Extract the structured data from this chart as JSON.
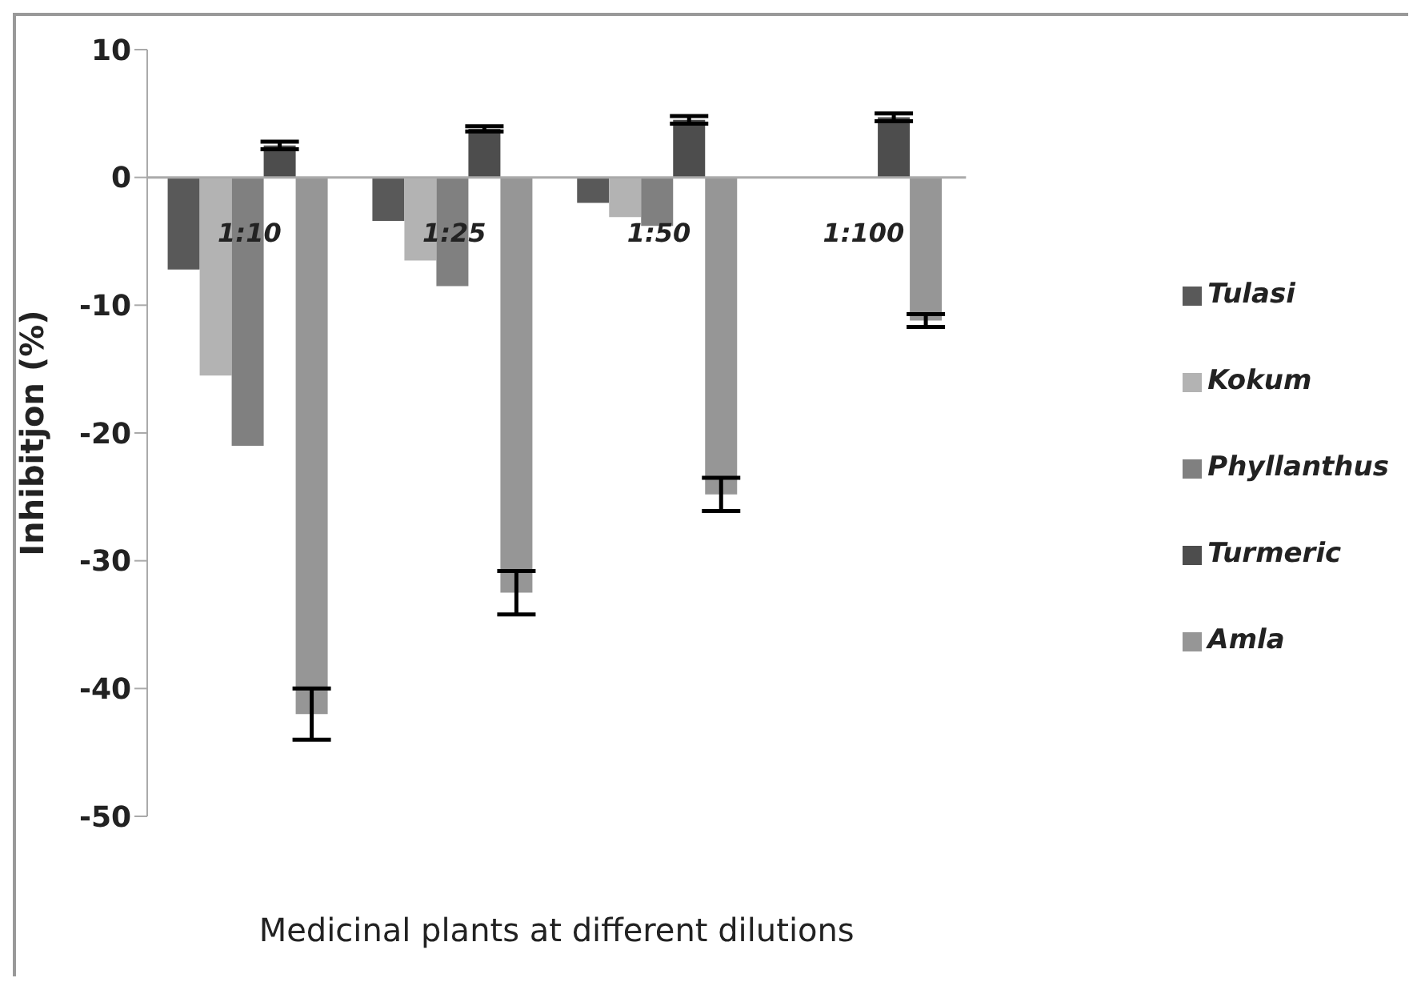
{
  "chart_data": {
    "type": "bar",
    "xlabel": "Medicinal plants at different dilutions",
    "ylabel": "Inhibitjon (%)",
    "categories": [
      "1:10",
      "1:25",
      "1:50",
      "1:100"
    ],
    "series": [
      {
        "name": "Tulasi",
        "color": "#595959",
        "values": [
          -7.2,
          -3.4,
          -2,
          0
        ]
      },
      {
        "name": "Kokum",
        "color": "#b3b3b3",
        "values": [
          -15.5,
          -6.5,
          -3.1,
          0
        ]
      },
      {
        "name": "Phyllanthus",
        "color": "#808080",
        "values": [
          -21,
          -8.5,
          -3.8,
          0
        ]
      },
      {
        "name": "Turmeric",
        "color": "#4d4d4d",
        "values": [
          2.5,
          3.8,
          4.5,
          4.7
        ],
        "errors": [
          0.3,
          0.2,
          0.3,
          0.3
        ]
      },
      {
        "name": "Amla",
        "color": "#969696",
        "values": [
          -42,
          -32.5,
          -24.8,
          -11.2
        ],
        "errors": [
          2,
          1.7,
          1.3,
          0.5
        ]
      }
    ],
    "ylim": [
      -50,
      10
    ],
    "yticks": [
      -50,
      -40,
      -30,
      -20,
      -10,
      0,
      10
    ],
    "legend": "right"
  }
}
